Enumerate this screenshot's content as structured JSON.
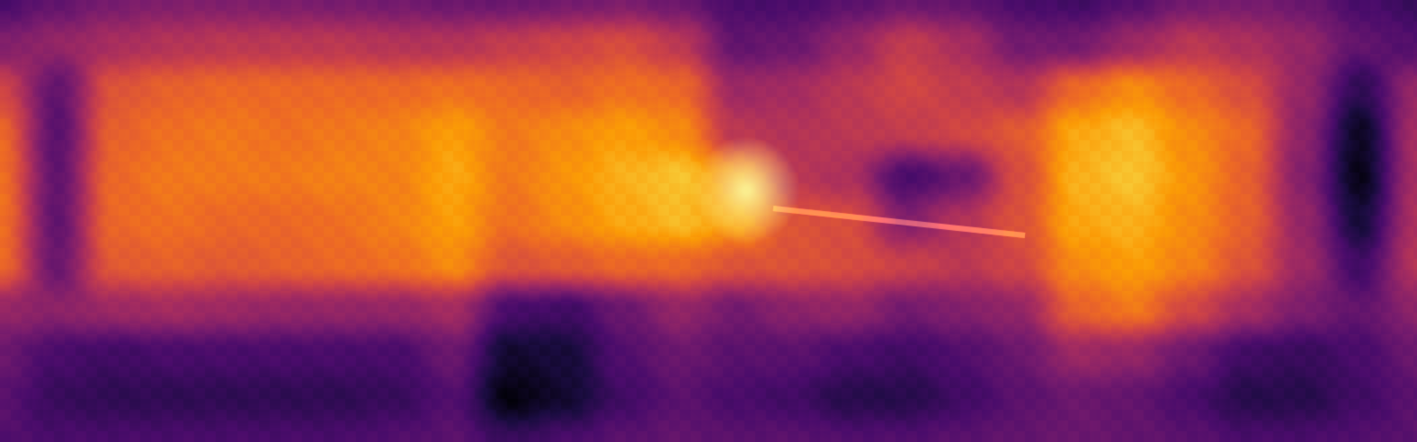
{
  "image": {
    "kind": "depth-or-saliency-heatmap",
    "colormap": "inferno",
    "colormap_stops": [
      "#000004",
      "#1b0c41",
      "#4a0c6b",
      "#781c6d",
      "#a52c60",
      "#cf4446",
      "#ed6925",
      "#fb9b06",
      "#f7d13d",
      "#fcffa4"
    ]
  }
}
